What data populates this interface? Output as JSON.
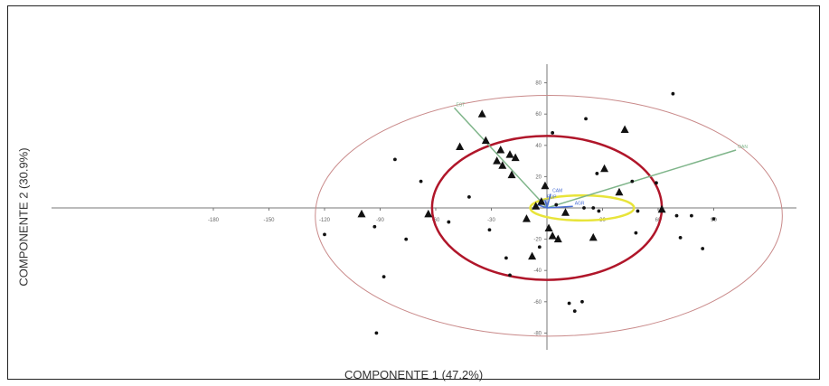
{
  "chart_data": {
    "type": "scatter",
    "title": "",
    "xlabel": "COMPONENTE 1 (47.2%)",
    "ylabel": "COMPONENTE 2 (30.9%)",
    "xlim": [
      -220,
      135
    ],
    "ylim": [
      -81,
      83
    ],
    "x_ticks": [
      -180,
      -150,
      -120,
      -90,
      -60,
      -30,
      30,
      60,
      90
    ],
    "y_ticks": [
      -80,
      -60,
      -40,
      -20,
      20,
      40,
      60,
      80
    ],
    "grid": false,
    "colors": {
      "axis": "#777777",
      "points": "#111111",
      "ellipse_outer": "#c98a8a",
      "ellipse_middle": "#b0162a",
      "ellipse_inner": "#e8e43a",
      "vector_green": "#7fb58a",
      "vector_blue": "#4a6fd4"
    },
    "ellipses": [
      {
        "cx": 1,
        "cy": -5,
        "rx": 126,
        "ry": 77,
        "color": "ellipse_outer",
        "width": 1
      },
      {
        "cx": 0,
        "cy": 0,
        "rx": 62,
        "ry": 46,
        "color": "ellipse_middle",
        "width": 2.5
      },
      {
        "cx": 19,
        "cy": 0,
        "rx": 28,
        "ry": 8,
        "color": "ellipse_inner",
        "width": 2.5
      }
    ],
    "vectors": [
      {
        "label": "EST",
        "x": -50,
        "y": 64,
        "color": "vector_green",
        "width": 1.5
      },
      {
        "label": "OAN",
        "x": 102,
        "y": 37,
        "color": "vector_green",
        "width": 1.5
      },
      {
        "label": "AGR",
        "x": 14,
        "y": 1,
        "color": "vector_blue",
        "width": 1.5
      },
      {
        "label": "CAM",
        "x": 2,
        "y": 9,
        "color": "vector_blue",
        "width": 1.5
      },
      {
        "label": "RUP",
        "x": -1,
        "y": 5,
        "color": "vector_blue",
        "width": 1.5
      },
      {
        "label": "NAT",
        "x": -5,
        "y": 2,
        "color": "vector_blue",
        "width": 1.5
      }
    ],
    "vector_labels": {
      "EST": "EST",
      "OAN": "OAN",
      "AGR": "AGR",
      "CAM": "CAM",
      "RUP": "RUP",
      "NAT": "NAT"
    },
    "series": [
      {
        "marker": "triangle",
        "points": [
          [
            -35,
            60
          ],
          [
            -33,
            43
          ],
          [
            -47,
            39
          ],
          [
            -25,
            37
          ],
          [
            -20,
            34
          ],
          [
            -17,
            32
          ],
          [
            -27,
            30
          ],
          [
            -24,
            27
          ],
          [
            -19,
            21
          ],
          [
            -1,
            14
          ],
          [
            42,
            50
          ],
          [
            31,
            25
          ],
          [
            39,
            10
          ],
          [
            -3,
            4
          ],
          [
            -6,
            1
          ],
          [
            -100,
            -4
          ],
          [
            -64,
            -4
          ],
          [
            -11,
            -7
          ],
          [
            10,
            -3
          ],
          [
            1,
            -13
          ],
          [
            3,
            -18
          ],
          [
            6,
            -20
          ],
          [
            -8,
            -31
          ],
          [
            25,
            -19
          ],
          [
            62,
            -1
          ]
        ]
      },
      {
        "marker": "dot",
        "points": [
          [
            68,
            73
          ],
          [
            21,
            57
          ],
          [
            3,
            48
          ],
          [
            -82,
            31
          ],
          [
            -68,
            17
          ],
          [
            27,
            22
          ],
          [
            46,
            17
          ],
          [
            59,
            16
          ],
          [
            -42,
            7
          ],
          [
            5,
            2
          ],
          [
            20,
            0
          ],
          [
            25,
            0
          ],
          [
            28,
            -2
          ],
          [
            49,
            -2
          ],
          [
            70,
            -5
          ],
          [
            78,
            -5
          ],
          [
            90,
            -7
          ],
          [
            -53,
            -9
          ],
          [
            -93,
            -12
          ],
          [
            -31,
            -14
          ],
          [
            -120,
            -17
          ],
          [
            -76,
            -20
          ],
          [
            48,
            -16
          ],
          [
            72,
            -19
          ],
          [
            -4,
            -25
          ],
          [
            -22,
            -32
          ],
          [
            -20,
            -43
          ],
          [
            -88,
            -44
          ],
          [
            12,
            -61
          ],
          [
            19,
            -60
          ],
          [
            15,
            -66
          ],
          [
            84,
            -26
          ],
          [
            -92,
            -80
          ]
        ]
      }
    ]
  }
}
